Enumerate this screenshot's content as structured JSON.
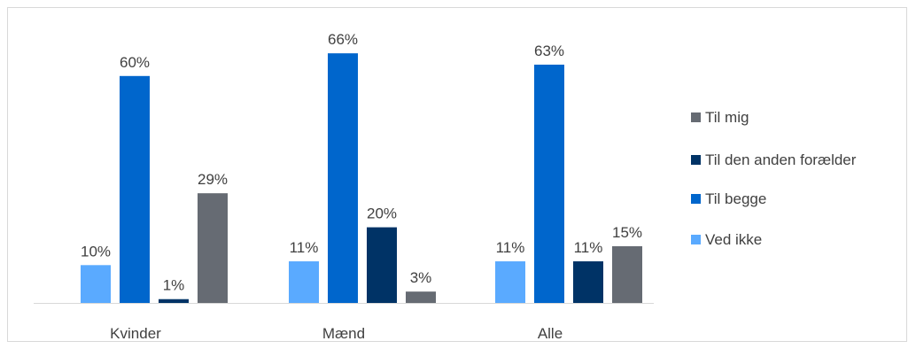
{
  "chart_data": {
    "type": "bar",
    "title": "",
    "xlabel": "",
    "ylabel": "",
    "categories": [
      "Kvinder",
      "Mænd",
      "Alle"
    ],
    "series": [
      {
        "name": "Ved ikke",
        "values": [
          10,
          11,
          11
        ],
        "labels": [
          "10%",
          "11%",
          "11%"
        ],
        "color": "#5aaaff"
      },
      {
        "name": "Til begge",
        "values": [
          60,
          66,
          63
        ],
        "labels": [
          "60%",
          "66%",
          "63%"
        ],
        "color": "#0066cc"
      },
      {
        "name": "Til den anden forælder",
        "values": [
          1,
          20,
          11
        ],
        "labels": [
          "1%",
          "20%",
          "11%"
        ],
        "color": "#003366"
      },
      {
        "name": "Til mig",
        "values": [
          29,
          3,
          15
        ],
        "labels": [
          "29%",
          "3%",
          "15%"
        ],
        "color": "#666b73"
      }
    ],
    "legend_order": [
      "Til mig",
      "Til den anden forælder",
      "Til begge",
      "Ved ikke"
    ],
    "legend_position": "right",
    "ylim": [
      0,
      70
    ],
    "grid": false
  }
}
